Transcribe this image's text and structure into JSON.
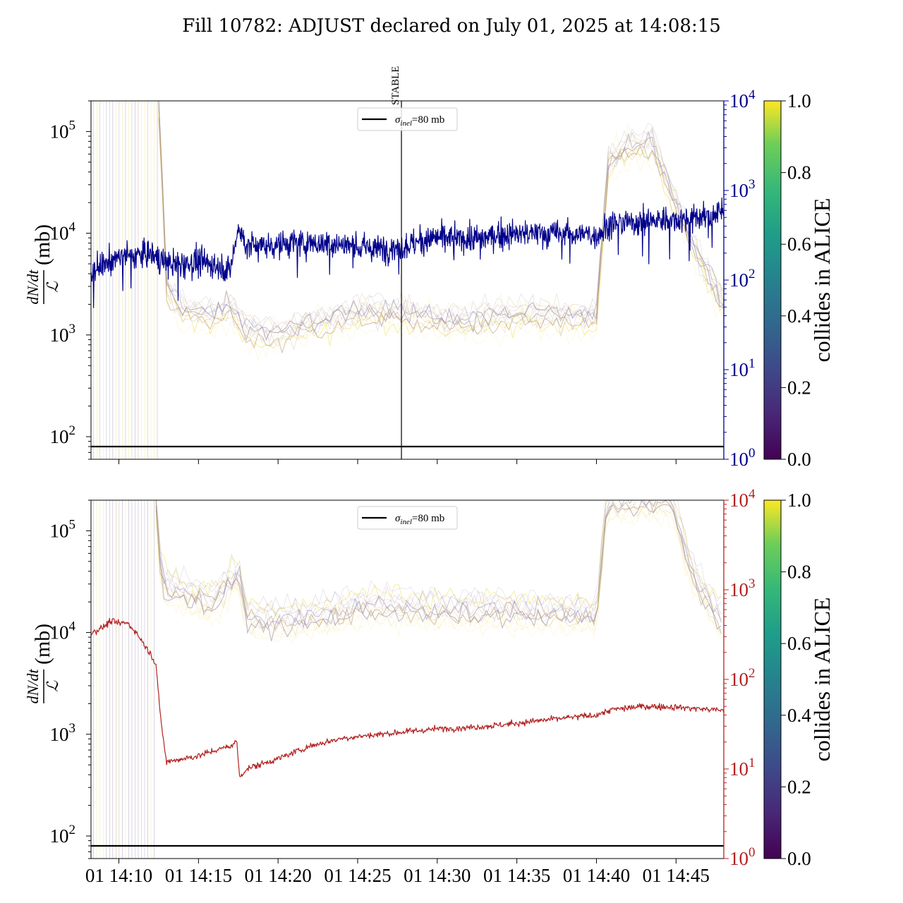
{
  "figure": {
    "title": "Fill 10782: ADJUST declared on July 01, 2025 at 14:08:15"
  },
  "colors": {
    "navy": "#00008b",
    "firebrick": "#b22222",
    "purple": "#8d7aa3",
    "yellow": "#f2e25a",
    "brown": "#b9946a",
    "black": "#000000"
  },
  "colorbar": {
    "label": "collides in ALICE",
    "ticks": [
      "0.0",
      "0.2",
      "0.4",
      "0.6",
      "0.8",
      "1.0"
    ],
    "colormap": "viridis"
  },
  "chart_data": [
    {
      "type": "line",
      "panel": "top",
      "ylabel_numerator": "dN/dt",
      "ylabel_denominator": "ℒ",
      "ylabel_unit": "(mb)",
      "yscale_left": "log",
      "ylim_left": [
        60,
        200000
      ],
      "yticks_left": [
        {
          "value": 100,
          "base": "10",
          "exp": "2"
        },
        {
          "value": 1000,
          "base": "10",
          "exp": "3"
        },
        {
          "value": 10000,
          "base": "10",
          "exp": "4"
        },
        {
          "value": 100000,
          "base": "10",
          "exp": "5"
        }
      ],
      "yscale_right": "log",
      "ylim_right": [
        1,
        10000
      ],
      "right_axis_color": "#00008b",
      "yticks_right": [
        {
          "value": 1,
          "base": "10",
          "exp": "0"
        },
        {
          "value": 10,
          "base": "10",
          "exp": "1"
        },
        {
          "value": 100,
          "base": "10",
          "exp": "2"
        },
        {
          "value": 1000,
          "base": "10",
          "exp": "3"
        },
        {
          "value": 10000,
          "base": "10",
          "exp": "4"
        }
      ],
      "xlim": [
        "14:08:15",
        "14:48:00"
      ],
      "vline": {
        "time": "14:27:45",
        "label": "STABLE"
      },
      "hline": {
        "value": 80
      },
      "legend": {
        "location": "upper center",
        "label_symbol": "σ",
        "label_sub": "inel",
        "label_rest": "=80 mb"
      },
      "right_series_color": "#00008b",
      "right_series_key": [
        [
          "14:08:15",
          120
        ],
        [
          "14:09:00",
          150
        ],
        [
          "14:10:00",
          180
        ],
        [
          "14:11:00",
          190
        ],
        [
          "14:12:00",
          200
        ],
        [
          "14:13:00",
          150
        ],
        [
          "14:14:00",
          150
        ],
        [
          "14:15:00",
          160
        ],
        [
          "14:16:00",
          150
        ],
        [
          "14:17:00",
          130
        ],
        [
          "14:17:30",
          380
        ],
        [
          "14:18:00",
          240
        ],
        [
          "14:20:00",
          250
        ],
        [
          "14:22:00",
          260
        ],
        [
          "14:24:00",
          250
        ],
        [
          "14:26:00",
          220
        ],
        [
          "14:28:00",
          240
        ],
        [
          "14:30:00",
          300
        ],
        [
          "14:32:00",
          280
        ],
        [
          "14:34:00",
          320
        ],
        [
          "14:36:00",
          330
        ],
        [
          "14:38:00",
          330
        ],
        [
          "14:40:00",
          320
        ],
        [
          "14:41:00",
          430
        ],
        [
          "14:43:00",
          450
        ],
        [
          "14:45:00",
          480
        ],
        [
          "14:47:00",
          500
        ],
        [
          "14:48:00",
          600
        ]
      ],
      "bunch_envelope_key": [
        [
          "14:08:15",
          200000
        ],
        [
          "14:12:30",
          200000
        ],
        [
          "14:13:00",
          3000
        ],
        [
          "14:14:00",
          1800
        ],
        [
          "14:16:00",
          1500
        ],
        [
          "14:17:00",
          1900
        ],
        [
          "14:18:00",
          1100
        ],
        [
          "14:20:00",
          1000
        ],
        [
          "14:22:00",
          1300
        ],
        [
          "14:24:00",
          1500
        ],
        [
          "14:26:00",
          1700
        ],
        [
          "14:28:00",
          1600
        ],
        [
          "14:30:00",
          1400
        ],
        [
          "14:32:00",
          1400
        ],
        [
          "14:34:00",
          1500
        ],
        [
          "14:36:00",
          1600
        ],
        [
          "14:38:00",
          1500
        ],
        [
          "14:40:00",
          1500
        ],
        [
          "14:40:45",
          50000
        ],
        [
          "14:42:00",
          70000
        ],
        [
          "14:43:30",
          80000
        ],
        [
          "14:44:30",
          30000
        ],
        [
          "14:46:00",
          8000
        ],
        [
          "14:48:00",
          2000
        ]
      ]
    },
    {
      "type": "line",
      "panel": "bottom",
      "ylabel_numerator": "dN/dt",
      "ylabel_denominator": "ℒ",
      "ylabel_unit": "(mb)",
      "yscale_left": "log",
      "ylim_left": [
        60,
        200000
      ],
      "yticks_left": [
        {
          "value": 100,
          "base": "10",
          "exp": "2"
        },
        {
          "value": 1000,
          "base": "10",
          "exp": "3"
        },
        {
          "value": 10000,
          "base": "10",
          "exp": "4"
        },
        {
          "value": 100000,
          "base": "10",
          "exp": "5"
        }
      ],
      "yscale_right": "log",
      "ylim_right": [
        1,
        10000
      ],
      "right_axis_color": "#b22222",
      "yticks_right": [
        {
          "value": 1,
          "base": "10",
          "exp": "0"
        },
        {
          "value": 10,
          "base": "10",
          "exp": "1"
        },
        {
          "value": 100,
          "base": "10",
          "exp": "2"
        },
        {
          "value": 1000,
          "base": "10",
          "exp": "3"
        },
        {
          "value": 10000,
          "base": "10",
          "exp": "4"
        }
      ],
      "xlim": [
        "14:08:15",
        "14:48:00"
      ],
      "xticks": [
        {
          "time": "14:10:00",
          "label": "01 14:10"
        },
        {
          "time": "14:15:00",
          "label": "01 14:15"
        },
        {
          "time": "14:20:00",
          "label": "01 14:20"
        },
        {
          "time": "14:25:00",
          "label": "01 14:25"
        },
        {
          "time": "14:30:00",
          "label": "01 14:30"
        },
        {
          "time": "14:35:00",
          "label": "01 14:35"
        },
        {
          "time": "14:40:00",
          "label": "01 14:40"
        },
        {
          "time": "14:45:00",
          "label": "01 14:45"
        }
      ],
      "hline": {
        "value": 80
      },
      "legend": {
        "location": "upper center",
        "label_symbol": "σ",
        "label_sub": "inel",
        "label_rest": "=80 mb"
      },
      "right_series_color": "#b22222",
      "right_series_key": [
        [
          "14:08:15",
          330
        ],
        [
          "14:09:00",
          380
        ],
        [
          "14:09:30",
          450
        ],
        [
          "14:10:00",
          420
        ],
        [
          "14:10:30",
          430
        ],
        [
          "14:11:00",
          350
        ],
        [
          "14:11:30",
          260
        ],
        [
          "14:12:00",
          190
        ],
        [
          "14:12:20",
          150
        ],
        [
          "14:12:40",
          30
        ],
        [
          "14:13:00",
          12
        ],
        [
          "14:14:00",
          13
        ],
        [
          "14:15:00",
          14
        ],
        [
          "14:16:00",
          16
        ],
        [
          "14:17:00",
          18
        ],
        [
          "14:17:25",
          20
        ],
        [
          "14:17:35",
          8
        ],
        [
          "14:18:00",
          10
        ],
        [
          "14:20:00",
          13
        ],
        [
          "14:22:00",
          18
        ],
        [
          "14:24:00",
          22
        ],
        [
          "14:26:00",
          24
        ],
        [
          "14:28:00",
          26
        ],
        [
          "14:30:00",
          28
        ],
        [
          "14:32:00",
          29
        ],
        [
          "14:34:00",
          31
        ],
        [
          "14:36:00",
          34
        ],
        [
          "14:38:00",
          37
        ],
        [
          "14:40:00",
          40
        ],
        [
          "14:41:00",
          46
        ],
        [
          "14:43:00",
          50
        ],
        [
          "14:45:00",
          49
        ],
        [
          "14:48:00",
          45
        ]
      ],
      "bunch_envelope_key": [
        [
          "14:08:15",
          200000
        ],
        [
          "14:12:20",
          200000
        ],
        [
          "14:12:40",
          30000
        ],
        [
          "14:14:00",
          25000
        ],
        [
          "14:16:00",
          20000
        ],
        [
          "14:17:30",
          40000
        ],
        [
          "14:18:00",
          15000
        ],
        [
          "14:20:00",
          13000
        ],
        [
          "14:22:00",
          14000
        ],
        [
          "14:24:00",
          17000
        ],
        [
          "14:26:00",
          19000
        ],
        [
          "14:28:00",
          18000
        ],
        [
          "14:30:00",
          17000
        ],
        [
          "14:32:00",
          17000
        ],
        [
          "14:34:00",
          17000
        ],
        [
          "14:36:00",
          16000
        ],
        [
          "14:38:00",
          16000
        ],
        [
          "14:40:00",
          15000
        ],
        [
          "14:40:40",
          200000
        ],
        [
          "14:44:40",
          200000
        ],
        [
          "14:46:00",
          40000
        ],
        [
          "14:48:00",
          12000
        ]
      ]
    }
  ]
}
